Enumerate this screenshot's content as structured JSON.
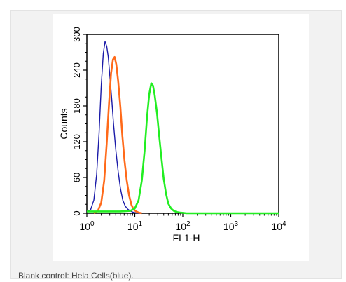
{
  "caption": "Blank control: Hela Cells(blue).",
  "chart_data": {
    "type": "line",
    "title": "",
    "xlabel": "FL1-H",
    "ylabel": "Counts",
    "xscale": "log",
    "xlim": [
      1,
      10000
    ],
    "ylim": [
      0,
      300
    ],
    "x_ticks": [
      {
        "value": 1,
        "base": "10",
        "exp": "0"
      },
      {
        "value": 10,
        "base": "10",
        "exp": "1"
      },
      {
        "value": 100,
        "base": "10",
        "exp": "2"
      },
      {
        "value": 1000,
        "base": "10",
        "exp": "3"
      },
      {
        "value": 10000,
        "base": "10",
        "exp": "4"
      }
    ],
    "y_ticks": [
      "0",
      "60",
      "120",
      "180",
      "240",
      "300"
    ],
    "grid": false,
    "series": [
      {
        "color": "#1a1aa8",
        "x": [
          1.0,
          1.2,
          1.4,
          1.6,
          1.8,
          2.0,
          2.2,
          2.4,
          2.6,
          2.8,
          3.0,
          3.3,
          3.6,
          4.0,
          4.5,
          5.0,
          5.6,
          6.3,
          7.1,
          8.0,
          9.0,
          10,
          11.5,
          13
        ],
        "y": [
          2,
          6,
          22,
          65,
          135,
          215,
          268,
          288,
          280,
          262,
          232,
          192,
          150,
          108,
          70,
          42,
          22,
          12,
          7,
          4,
          2,
          1,
          0,
          0
        ]
      },
      {
        "color": "#ff6a1a",
        "x": [
          1.4,
          1.7,
          2.0,
          2.3,
          2.6,
          2.9,
          3.2,
          3.5,
          3.8,
          4.1,
          4.5,
          5.0,
          5.5,
          6.1,
          6.8,
          7.6,
          8.5,
          9.5,
          10.7,
          12,
          14
        ],
        "y": [
          0,
          4,
          18,
          55,
          118,
          185,
          235,
          258,
          262,
          250,
          222,
          178,
          130,
          88,
          55,
          30,
          14,
          6,
          3,
          1,
          0
        ]
      },
      {
        "color": "#22ee22",
        "x": [
          1,
          5,
          8,
          10,
          12,
          14,
          16,
          18,
          20,
          22,
          24,
          26,
          29,
          32,
          36,
          40,
          45,
          50,
          57,
          65,
          75,
          90,
          120,
          200,
          1000,
          10000
        ],
        "y": [
          3,
          3,
          4,
          8,
          22,
          55,
          105,
          162,
          200,
          218,
          214,
          198,
          168,
          132,
          92,
          58,
          32,
          16,
          8,
          4,
          2,
          1,
          0,
          0,
          0,
          0
        ]
      }
    ]
  }
}
